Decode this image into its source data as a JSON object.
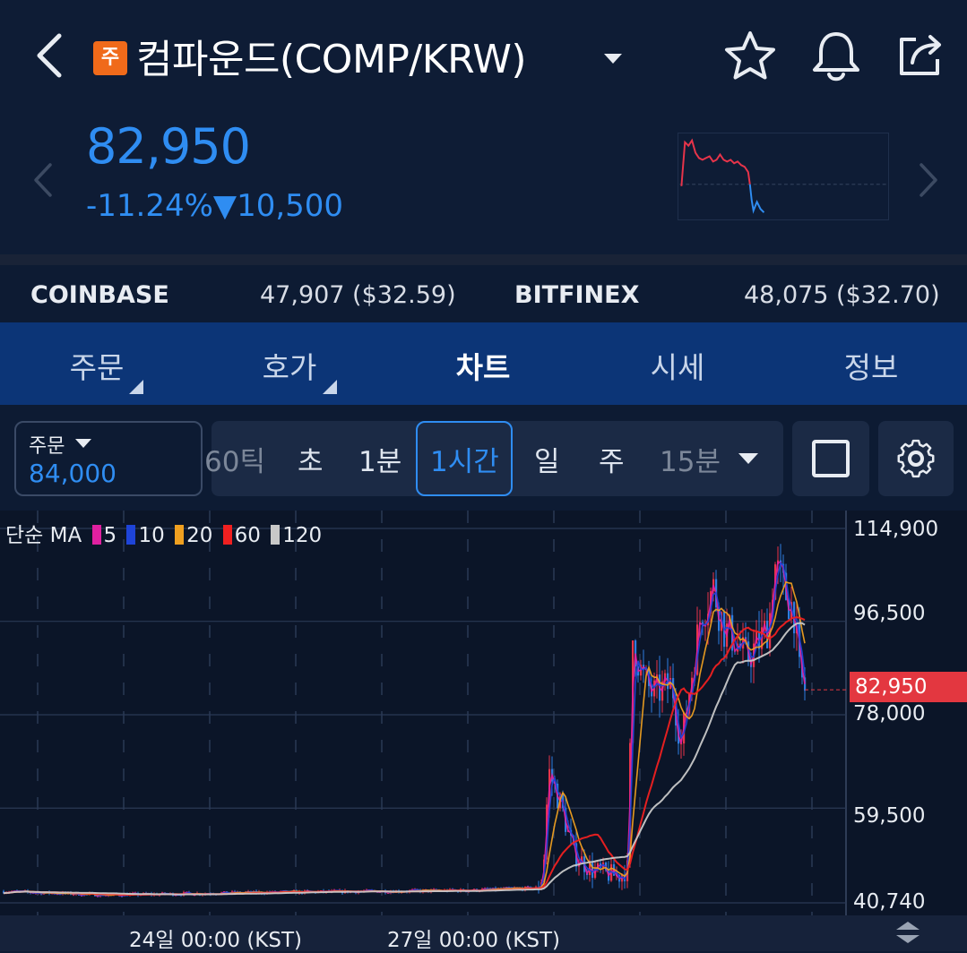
{
  "header": {
    "badge": "주",
    "title": "컴파운드(COMP/KRW)"
  },
  "price": {
    "current": "82,950",
    "change_pct": "-11.24%",
    "change_arrow": "▼",
    "change_abs": "10,500"
  },
  "exchanges": [
    {
      "name": "COINBASE",
      "value": "47,907 ($32.59)"
    },
    {
      "name": "BITFINEX",
      "value": "48,075 ($32.70)"
    }
  ],
  "tabs": [
    {
      "label": "주문"
    },
    {
      "label": "호가"
    },
    {
      "label": "차트"
    },
    {
      "label": "시세"
    },
    {
      "label": "정보"
    }
  ],
  "order_box": {
    "label": "주문",
    "value": "84,000"
  },
  "intervals": [
    "60틱",
    "초",
    "1분",
    "1시간",
    "일",
    "주",
    "15분"
  ],
  "selected_interval": "1시간",
  "chart_data": {
    "type": "candlestick",
    "ma_legend": {
      "label": "단순 MA",
      "items": [
        {
          "period": "5",
          "color": "#e020a0"
        },
        {
          "period": "10",
          "color": "#1e44d8"
        },
        {
          "period": "20",
          "color": "#f0a020"
        },
        {
          "period": "60",
          "color": "#f02020"
        },
        {
          "period": "120",
          "color": "#c8c8c8"
        }
      ]
    },
    "y_tick_labels": [
      "114,900",
      "96,500",
      "78,000",
      "59,500",
      "40,740"
    ],
    "y_ticks": [
      114900,
      96500,
      78000,
      59500,
      40740
    ],
    "ylim": [
      40740,
      114900
    ],
    "x_tick_labels": [
      "24일 00:00 (KST)",
      "27일 00:00 (KST)"
    ],
    "current_price_label": "82,950",
    "current_price": 82950,
    "colors": {
      "up": "#e8344a",
      "down": "#2f7de0"
    }
  }
}
